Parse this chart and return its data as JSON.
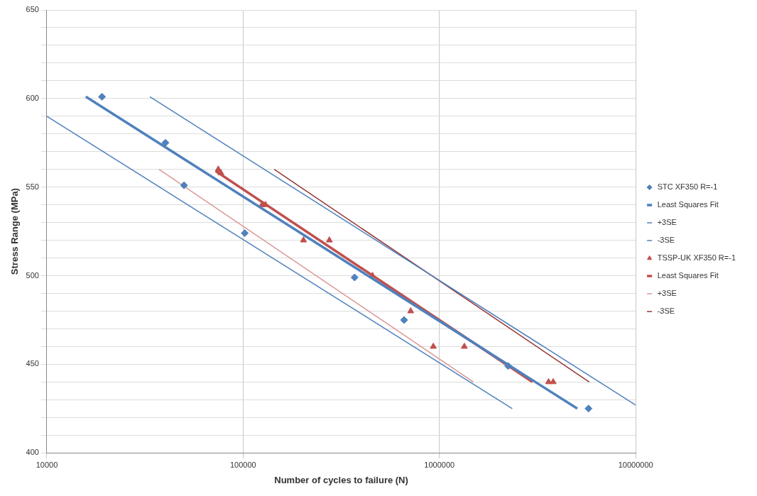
{
  "chart_data": {
    "type": "scatter",
    "xlabel": "Number of cycles to failure (N)",
    "ylabel": "Stress Range (MPa)",
    "log": "x",
    "xlim": [
      10000,
      10000000
    ],
    "xticks": [
      10000,
      100000,
      1000000,
      10000000
    ],
    "ylim": [
      400,
      650
    ],
    "yticks": [
      400,
      {
        "value": 410,
        "label": null
      },
      {
        "value": 420,
        "label": null
      },
      {
        "value": 430,
        "label": null
      },
      {
        "value": 440,
        "label": null
      },
      450,
      {
        "value": 460,
        "label": null
      },
      {
        "value": 470,
        "label": null
      },
      {
        "value": 480,
        "label": null
      },
      {
        "value": 490,
        "label": null
      },
      500,
      {
        "value": 510,
        "label": null
      },
      {
        "value": 520,
        "label": null
      },
      {
        "value": 530,
        "label": null
      },
      {
        "value": 540,
        "label": null
      },
      550,
      {
        "value": 560,
        "label": null
      },
      {
        "value": 570,
        "label": null
      },
      {
        "value": 580,
        "label": null
      },
      {
        "value": 590,
        "label": null
      },
      600,
      {
        "value": 610,
        "label": null
      },
      {
        "value": 620,
        "label": null
      },
      {
        "value": 630,
        "label": null
      },
      {
        "value": 640,
        "label": null
      },
      650
    ],
    "grid": true,
    "legend": "right",
    "series": [
      {
        "name": "STC XF350 R=-1",
        "type": "scatter",
        "marker": "diamond",
        "color": "#4f81bd",
        "x": [
          19100,
          40200,
          50000,
          102000,
          370000,
          661000,
          2240000,
          5750000
        ],
        "values": [
          601,
          575,
          551,
          524,
          499,
          475,
          449,
          425
        ]
      },
      {
        "name": "Least Squares Fit",
        "type": "line",
        "marker": "none",
        "line_style": "solid",
        "color": "#4f81bd",
        "x": [
          15800,
          5040000
        ],
        "values": [
          601,
          425
        ]
      },
      {
        "name": "+3SE",
        "type": "line",
        "marker": "none",
        "line_style": "solid",
        "color": "#4f81bd",
        "x": [
          33500,
          10000000
        ],
        "values": [
          601,
          427
        ]
      },
      {
        "name": "-3SE",
        "type": "line",
        "marker": "none",
        "line_style": "solid",
        "color": "#4f81bd",
        "x": [
          10000,
          2350000
        ],
        "values": [
          590,
          425
        ]
      },
      {
        "name": "TSSP-UK XF350 R=-1",
        "type": "scatter",
        "marker": "triangle",
        "color": "#c0504d",
        "x": [
          74700,
          77000,
          125000,
          130000,
          203000,
          275000,
          456000,
          714000,
          931000,
          1340000,
          3600000,
          3800000
        ],
        "values": [
          560,
          558,
          540,
          540,
          520,
          520,
          500,
          480,
          460,
          460,
          440,
          440
        ]
      },
      {
        "name": "Least Squares Fit",
        "type": "line",
        "marker": "none",
        "line_style": "solid",
        "color": "#c0504d",
        "x": [
          72600,
          2980000
        ],
        "values": [
          559,
          440
        ]
      },
      {
        "name": "+3SE",
        "type": "line",
        "marker": "none",
        "line_style": "solid",
        "color": "#d99694",
        "x": [
          37300,
          1490000
        ],
        "values": [
          560,
          440
        ]
      },
      {
        "name": "-3SE",
        "type": "line",
        "marker": "none",
        "line_style": "solid",
        "color": "#953735",
        "x": [
          144000,
          5800000
        ],
        "values": [
          560,
          440
        ]
      }
    ]
  }
}
